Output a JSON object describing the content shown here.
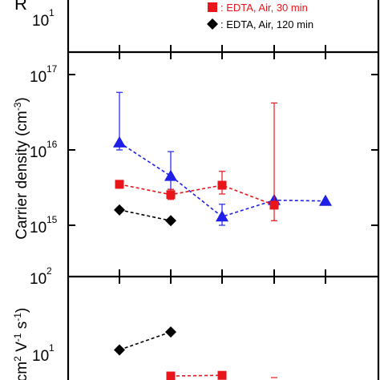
{
  "chart_data": [
    {
      "panel": "top",
      "type": "scatter",
      "ylabel": "R",
      "yscale": "log",
      "ticks_visible": [
        {
          "label_base": "10",
          "label_exp": "1",
          "value": 10
        }
      ],
      "legend": [
        {
          "label": ": EDTA, Air, 30 min",
          "marker": "square",
          "color": "#e8151b"
        },
        {
          "label": ": EDTA, Air, 120 min",
          "marker": "diamond",
          "color": "#000000"
        }
      ],
      "series": []
    },
    {
      "panel": "middle",
      "type": "scatter",
      "ylabel": "Carrier density (cm",
      "ylabel_exp": "-3",
      "ylabel_close": ")",
      "yscale": "log",
      "ylim": [
        100,
        100000000000000000
      ],
      "ticks": [
        {
          "label_base": "10",
          "label_exp": "17",
          "value": 1e+17
        },
        {
          "label_base": "10",
          "label_exp": "16",
          "value": 1e+16
        },
        {
          "label_base": "10",
          "label_exp": "15",
          "value": 1000000000000000.0
        },
        {
          "label_base": "10",
          "label_exp": "2",
          "value": 100
        }
      ],
      "series": [
        {
          "marker": "triangle",
          "color": "#1f1fe8",
          "line": "dashed",
          "x": [
            1,
            2,
            3,
            4,
            5
          ],
          "values": [
            1.25e+16,
            4500000000000000.0,
            1300000000000000.0,
            2150000000000000.0,
            2100000000000000.0
          ],
          "err_high": [
            5.8e+16,
            9500000000000000.0,
            1900000000000000.0,
            null,
            null
          ],
          "err_low": [
            1e+16,
            3000000000000000.0,
            1000000000000000.0,
            null,
            null
          ]
        },
        {
          "marker": "square",
          "color": "#e8151b",
          "line": "dashed",
          "x": [
            1,
            2,
            3,
            4
          ],
          "values": [
            3500000000000000.0,
            2550000000000000.0,
            3400000000000000.0,
            1850000000000000.0
          ],
          "err_high": [
            3900000000000000.0,
            3000000000000000.0,
            5200000000000000.0,
            4.2e+16
          ],
          "err_low": [
            3100000000000000.0,
            2200000000000000.0,
            2600000000000000.0,
            1150000000000000.0
          ]
        },
        {
          "marker": "diamond",
          "color": "#000000",
          "line": "dashed",
          "x": [
            1,
            2
          ],
          "values": [
            1600000000000000.0,
            1150000000000000.0
          ]
        }
      ]
    },
    {
      "panel": "bottom",
      "type": "scatter",
      "ylabel": "cm",
      "ylabel_exp1": "2",
      "ylabel_mid": " V",
      "ylabel_exp2": "-1",
      "ylabel_mid2": " s",
      "ylabel_exp3": "-1",
      "ylabel_close": ")",
      "yscale": "log",
      "ticks": [
        {
          "label_base": "10",
          "label_exp": "1",
          "value": 10
        }
      ],
      "series": [
        {
          "marker": "diamond",
          "color": "#000000",
          "line": "dashed",
          "x": [
            1,
            2
          ],
          "values": [
            11,
            20
          ]
        },
        {
          "marker": "square",
          "color": "#e8151b",
          "line": "dashed",
          "x": [
            2,
            3
          ],
          "values": [
            4.6,
            4.7
          ]
        }
      ]
    }
  ]
}
